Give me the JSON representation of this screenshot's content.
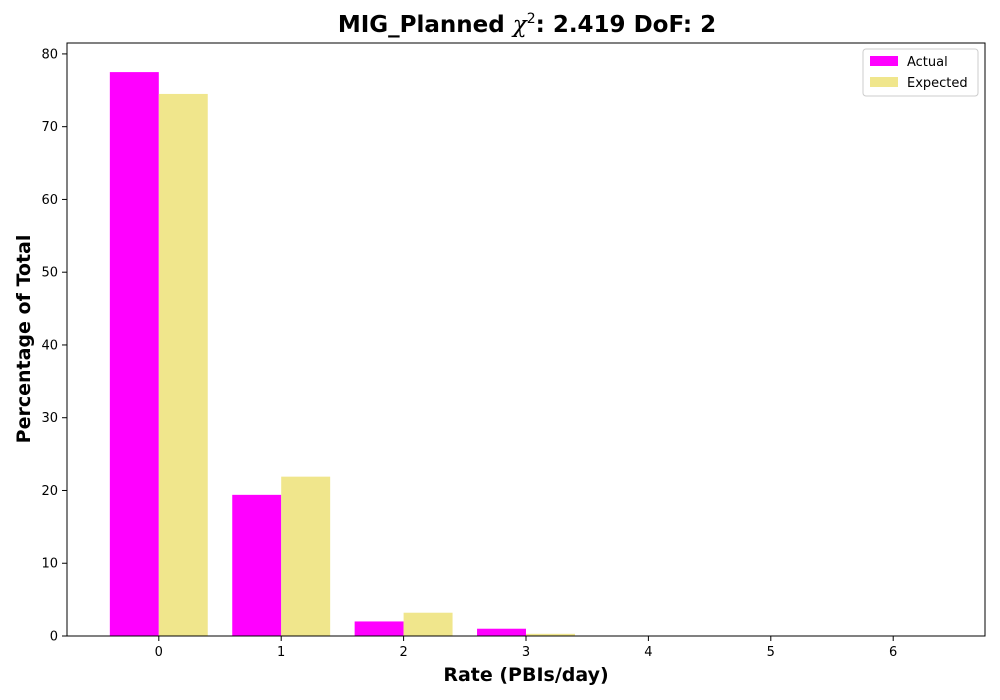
{
  "chart_data": {
    "type": "bar",
    "title_prefix": "MIG_Planned ",
    "title_chi": "χ",
    "title_sup": "2",
    "title_suffix": ": 2.419 DoF: 2",
    "xlabel": "Rate (PBIs/day)",
    "ylabel": "Percentage of Total",
    "categories": [
      0,
      1,
      2,
      3,
      4,
      5,
      6
    ],
    "xlim": [
      -0.75,
      6.75
    ],
    "ylim": [
      0,
      81.5
    ],
    "yticks": [
      0,
      10,
      20,
      30,
      40,
      50,
      60,
      70,
      80
    ],
    "grid": false,
    "legend_position": "top-right",
    "series": [
      {
        "name": "Actual",
        "color": "#ff00ff",
        "values": [
          77.5,
          19.4,
          2.0,
          1.0,
          0,
          0,
          0
        ]
      },
      {
        "name": "Expected",
        "color": "#f0e68c",
        "values": [
          74.5,
          21.9,
          3.2,
          0.3,
          0,
          0,
          0
        ]
      }
    ]
  }
}
